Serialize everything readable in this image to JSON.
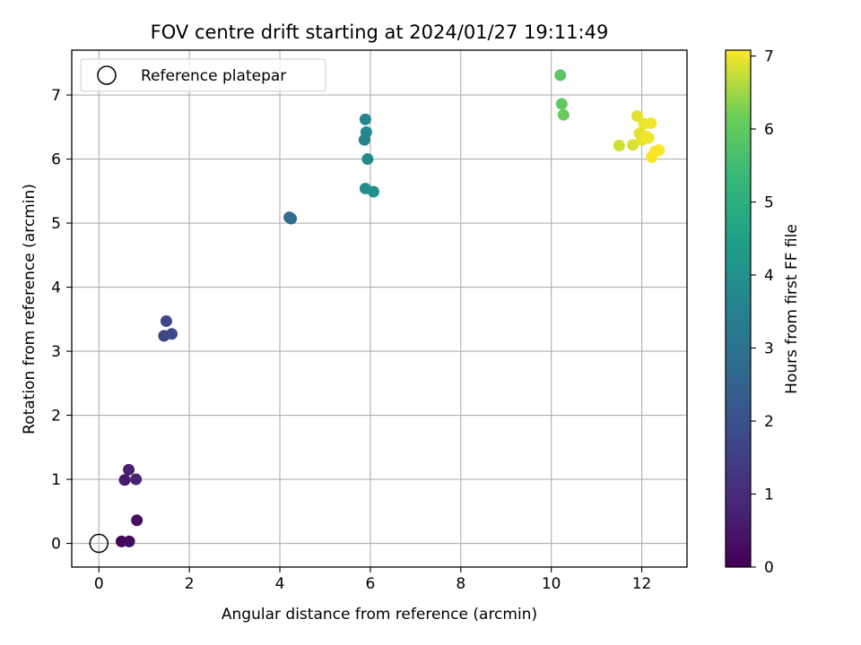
{
  "chart_data": {
    "type": "scatter",
    "title": "FOV centre drift starting at 2024/01/27 19:11:49",
    "xlabel": "Angular distance from reference (arcmin)",
    "ylabel": "Rotation from reference (arcmin)",
    "xlim": [
      -0.6,
      13.0
    ],
    "ylim": [
      -0.37,
      7.7
    ],
    "xticks": [
      0,
      2,
      4,
      6,
      8,
      10,
      12
    ],
    "yticks": [
      0,
      1,
      2,
      3,
      4,
      5,
      6,
      7
    ],
    "grid": true,
    "legend": {
      "position": "top-left",
      "label": "Reference platepar"
    },
    "reference_point": {
      "x": 0,
      "y": 0
    },
    "colorbar": {
      "label": "Hours from first FF file",
      "min": 0,
      "max": 7.08,
      "ticks": [
        0,
        1,
        2,
        3,
        4,
        5,
        6,
        7
      ],
      "colormap": "viridis"
    },
    "points": [
      {
        "x": 0.5,
        "y": 0.03,
        "c": 0.1
      },
      {
        "x": 0.67,
        "y": 0.03,
        "c": 0.2
      },
      {
        "x": 0.84,
        "y": 0.36,
        "c": 0.3
      },
      {
        "x": 0.57,
        "y": 0.99,
        "c": 0.6
      },
      {
        "x": 0.66,
        "y": 1.15,
        "c": 0.7
      },
      {
        "x": 0.82,
        "y": 1.0,
        "c": 0.8
      },
      {
        "x": 1.44,
        "y": 3.24,
        "c": 1.6
      },
      {
        "x": 1.49,
        "y": 3.47,
        "c": 1.7
      },
      {
        "x": 1.61,
        "y": 3.27,
        "c": 1.8
      },
      {
        "x": 4.21,
        "y": 5.09,
        "c": 2.8
      },
      {
        "x": 4.25,
        "y": 5.07,
        "c": 2.85
      },
      {
        "x": 5.87,
        "y": 6.3,
        "c": 3.5
      },
      {
        "x": 5.89,
        "y": 6.62,
        "c": 3.6
      },
      {
        "x": 5.91,
        "y": 6.42,
        "c": 3.7
      },
      {
        "x": 5.94,
        "y": 6.0,
        "c": 3.8
      },
      {
        "x": 5.89,
        "y": 5.54,
        "c": 3.9
      },
      {
        "x": 6.07,
        "y": 5.49,
        "c": 4.0
      },
      {
        "x": 10.2,
        "y": 7.31,
        "c": 5.9
      },
      {
        "x": 10.23,
        "y": 6.86,
        "c": 6.0
      },
      {
        "x": 10.27,
        "y": 6.69,
        "c": 6.1
      },
      {
        "x": 11.5,
        "y": 6.21,
        "c": 6.8
      },
      {
        "x": 11.8,
        "y": 6.22,
        "c": 6.85
      },
      {
        "x": 11.9,
        "y": 6.67,
        "c": 6.9
      },
      {
        "x": 11.95,
        "y": 6.4,
        "c": 6.92
      },
      {
        "x": 12.0,
        "y": 6.3,
        "c": 6.94
      },
      {
        "x": 12.05,
        "y": 6.55,
        "c": 6.96
      },
      {
        "x": 12.1,
        "y": 6.35,
        "c": 6.98
      },
      {
        "x": 12.15,
        "y": 6.33,
        "c": 7.0
      },
      {
        "x": 12.2,
        "y": 6.56,
        "c": 7.02
      },
      {
        "x": 12.22,
        "y": 6.03,
        "c": 7.04
      },
      {
        "x": 12.3,
        "y": 6.12,
        "c": 7.06
      },
      {
        "x": 12.38,
        "y": 6.14,
        "c": 7.08
      }
    ]
  }
}
